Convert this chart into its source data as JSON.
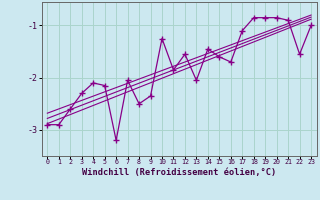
{
  "xlabel": "Windchill (Refroidissement éolien,°C)",
  "bg_color": "#cce8f0",
  "grid_color": "#aad4cc",
  "line_color": "#880088",
  "xlim": [
    -0.5,
    23.5
  ],
  "ylim": [
    -3.5,
    -0.55
  ],
  "yticks": [
    -3,
    -2,
    -1
  ],
  "xticks": [
    0,
    1,
    2,
    3,
    4,
    5,
    6,
    7,
    8,
    9,
    10,
    11,
    12,
    13,
    14,
    15,
    16,
    17,
    18,
    19,
    20,
    21,
    22,
    23
  ],
  "data_x": [
    0,
    1,
    2,
    3,
    4,
    5,
    6,
    7,
    8,
    9,
    10,
    11,
    12,
    13,
    14,
    15,
    16,
    17,
    18,
    19,
    20,
    21,
    22,
    23
  ],
  "data_y": [
    -2.9,
    -2.9,
    -2.6,
    -2.3,
    -2.1,
    -2.15,
    -3.2,
    -2.05,
    -2.5,
    -2.35,
    -1.25,
    -1.85,
    -1.55,
    -2.05,
    -1.45,
    -1.6,
    -1.7,
    -1.1,
    -0.85,
    -0.85,
    -0.85,
    -0.9,
    -1.55,
    -1.0
  ],
  "trend1_x": [
    0,
    23
  ],
  "trend1_y": [
    -2.88,
    -0.88
  ],
  "trend2_x": [
    0,
    23
  ],
  "trend2_y": [
    -2.68,
    -0.8
  ],
  "trend3_x": [
    0,
    23
  ],
  "trend3_y": [
    -2.78,
    -0.84
  ]
}
